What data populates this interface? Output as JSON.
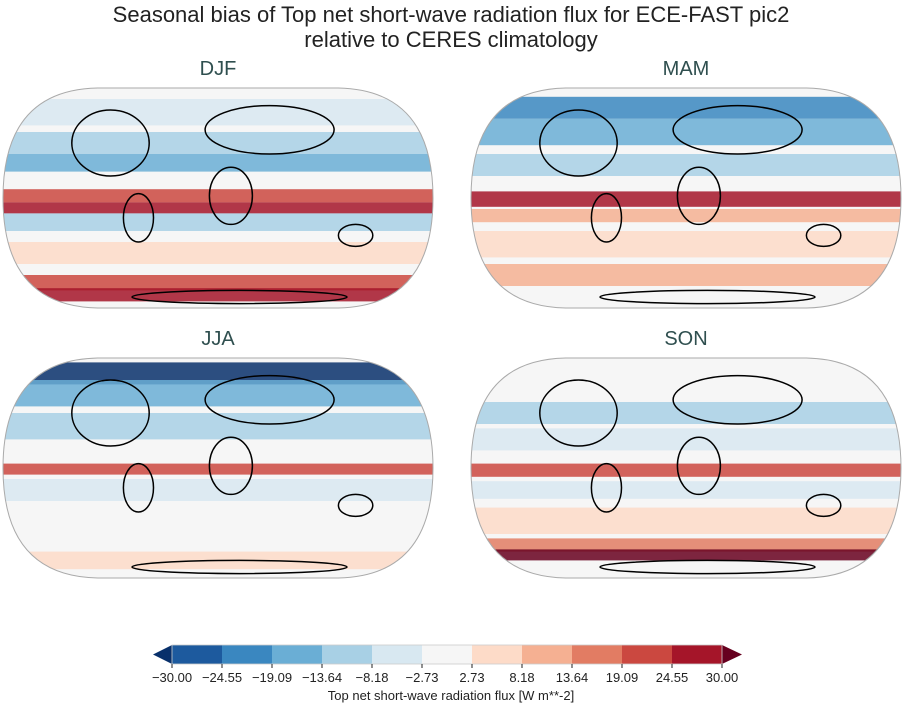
{
  "title": {
    "line1": "Seasonal bias of Top net short-wave radiation flux for ECE-FAST pic2",
    "line2": "relative to CERES climatology"
  },
  "panels": [
    {
      "season": "DJF"
    },
    {
      "season": "MAM"
    },
    {
      "season": "JJA"
    },
    {
      "season": "SON"
    }
  ],
  "colorbar": {
    "label": "Top net short-wave radiation flux [W m**-2]",
    "ticks": [
      "−30.00",
      "−24.55",
      "−19.09",
      "−13.64",
      "−8.18",
      "−2.73",
      "2.73",
      "8.18",
      "13.64",
      "19.09",
      "24.55",
      "30.00"
    ],
    "colors": [
      "#1d5a9e",
      "#3a87c0",
      "#6aaed5",
      "#a8d0e5",
      "#d8e8f1",
      "#f6f6f6",
      "#fddbc8",
      "#f5b092",
      "#e27c63",
      "#cb4840",
      "#a51529"
    ],
    "under_color": "#08306b",
    "over_color": "#67001f",
    "extend": "both"
  },
  "projection": "robinson"
}
